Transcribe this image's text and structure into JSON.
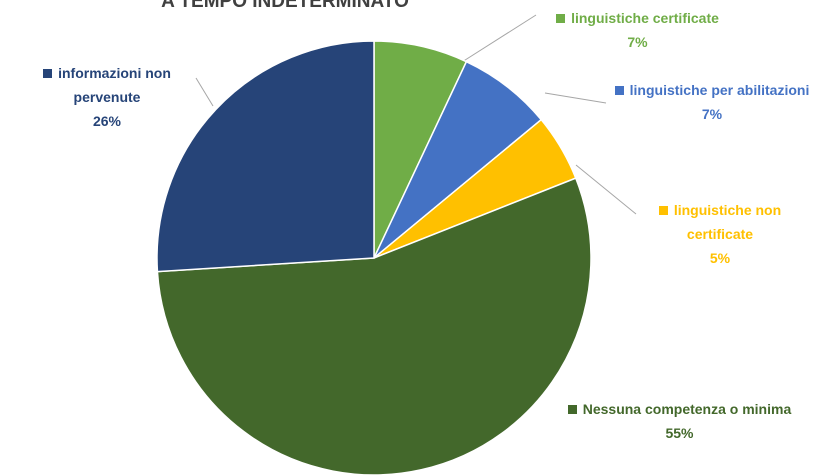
{
  "chart_data": {
    "type": "pie",
    "title": "A TEMPO INDETERMINATO",
    "categories": [
      "linguistiche certificate",
      "linguistiche per abilitazioni",
      "linguistiche non certificate",
      "Nessuna competenza o minima",
      "informazioni non pervenute"
    ],
    "values": [
      7,
      7,
      5,
      55,
      26
    ],
    "value_labels": [
      "7%",
      "7%",
      "5%",
      "55%",
      "26%"
    ],
    "colors": [
      "#70ad47",
      "#4472c4",
      "#ffc000",
      "#43682b",
      "#264478"
    ]
  }
}
